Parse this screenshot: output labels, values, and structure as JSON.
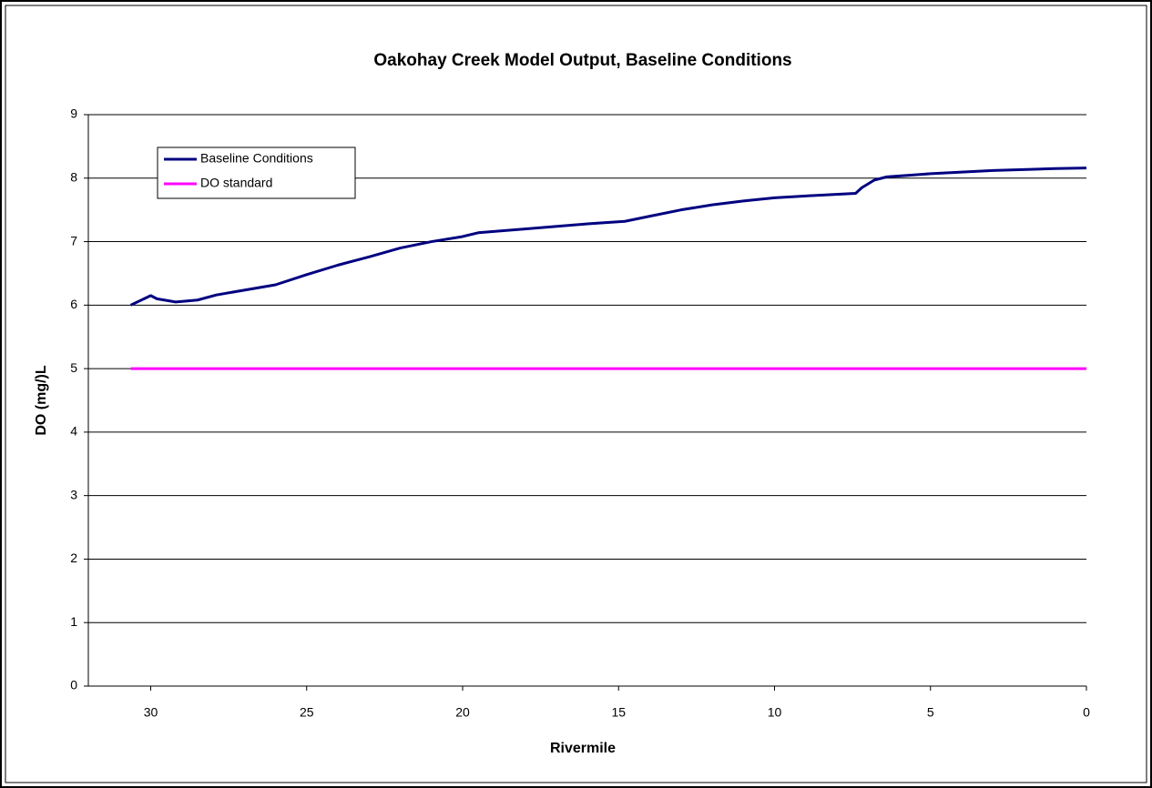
{
  "chart_data": {
    "type": "line",
    "title": "Oakohay Creek Model Output, Baseline Conditions",
    "x_label": "Rivermile",
    "y_label": "DO (mg/)L",
    "xlim": [
      32,
      0
    ],
    "xticks": [
      30,
      25,
      20,
      15,
      10,
      5,
      0
    ],
    "ylim": [
      0,
      9
    ],
    "yticks": [
      0,
      1,
      2,
      3,
      4,
      5,
      6,
      7,
      8,
      9
    ],
    "grid": true,
    "legend": "upper left",
    "series": [
      {
        "name": "Baseline Conditions",
        "color": "#000080",
        "x": [
          30.64,
          30.0,
          29.8,
          29.2,
          28.5,
          27.9,
          26.0,
          25,
          24,
          23,
          22,
          21,
          20,
          19.5,
          18,
          16,
          14.8,
          14,
          13,
          12,
          11,
          10,
          9,
          7.4,
          7.2,
          6.8,
          6.4,
          5,
          3,
          1,
          0
        ],
        "values": [
          6.0,
          6.15,
          6.1,
          6.05,
          6.08,
          6.16,
          6.32,
          6.48,
          6.63,
          6.76,
          6.9,
          7.0,
          7.08,
          7.14,
          7.2,
          7.28,
          7.32,
          7.4,
          7.5,
          7.58,
          7.64,
          7.69,
          7.72,
          7.76,
          7.85,
          7.97,
          8.02,
          8.07,
          8.12,
          8.15,
          8.16
        ]
      },
      {
        "name": "DO standard",
        "color": "#ff00ff",
        "x": [
          30.64,
          0
        ],
        "values": [
          5,
          5
        ]
      }
    ]
  }
}
